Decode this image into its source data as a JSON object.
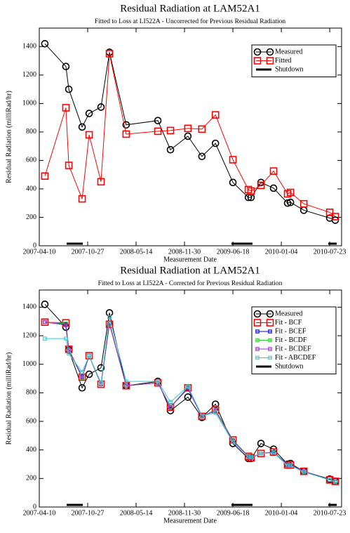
{
  "chart_data": [
    {
      "type": "line",
      "title": "Residual Radiation at LAM52A1",
      "subtitle": "Fitted to Loss at LI522A - Uncorrected for Previous Residual Radiation",
      "x_label": "Measurement Date",
      "y_label": "Residual Radiation (milliRad/hr)",
      "x": [
        "2007-05-03",
        "2007-07-29",
        "2007-08-10",
        "2007-10-04",
        "2007-11-02",
        "2007-12-21",
        "2008-01-25",
        "2008-04-03",
        "2008-08-12",
        "2008-10-03",
        "2008-12-14",
        "2009-02-10",
        "2009-04-07",
        "2009-06-18",
        "2009-08-21",
        "2009-09-01",
        "2009-10-12",
        "2009-12-03",
        "2010-01-30",
        "2010-02-11",
        "2010-04-07",
        "2010-07-23",
        "2010-08-15"
      ],
      "xlim": [
        "2007-04-10",
        "2010-09-10"
      ],
      "xticks": [
        "2007-04-10",
        "2007-10-27",
        "2008-05-14",
        "2008-11-30",
        "2009-06-18",
        "2010-01-04",
        "2010-07-23"
      ],
      "ylim": [
        0,
        1530
      ],
      "yticks": [
        0,
        200,
        400,
        600,
        800,
        1000,
        1200,
        1400
      ],
      "legend": "upper right",
      "series": [
        {
          "name": "Measured",
          "color": "#000000",
          "marker": "circle",
          "values": [
            1420,
            1260,
            1100,
            835,
            930,
            975,
            1360,
            850,
            880,
            675,
            770,
            628,
            720,
            445,
            340,
            340,
            445,
            405,
            300,
            305,
            250,
            195,
            180
          ]
        },
        {
          "name": "Fitted",
          "color": "#ff0000",
          "marker": "square",
          "values": [
            490,
            970,
            565,
            330,
            780,
            450,
            1350,
            785,
            805,
            810,
            825,
            820,
            920,
            605,
            395,
            385,
            425,
            525,
            365,
            375,
            295,
            235,
            205
          ]
        },
        {
          "name": "Shutdown",
          "color": "#000000",
          "periods": [
            [
              "2007-08-01",
              "2007-10-07"
            ],
            [
              "2009-06-12",
              "2009-09-07"
            ],
            [
              "2010-07-17",
              "2010-08-21"
            ]
          ]
        }
      ]
    },
    {
      "type": "line",
      "title": "Residual Radiation at LAM52A1",
      "subtitle": "Fitted to Loss at LI522A - Corrected for Previous Residual Radiation",
      "x_label": "Measurement Date",
      "y_label": "Residual Radiation (milliRad/hr)",
      "x": [
        "2007-05-03",
        "2007-07-29",
        "2007-08-10",
        "2007-10-04",
        "2007-11-02",
        "2007-12-21",
        "2008-01-25",
        "2008-04-03",
        "2008-08-12",
        "2008-10-03",
        "2008-12-14",
        "2009-02-10",
        "2009-04-07",
        "2009-06-18",
        "2009-08-21",
        "2009-09-01",
        "2009-10-12",
        "2009-12-03",
        "2010-01-30",
        "2010-02-11",
        "2010-04-07",
        "2010-07-23",
        "2010-08-15"
      ],
      "xlim": [
        "2007-04-10",
        "2010-09-10"
      ],
      "xticks": [
        "2007-04-10",
        "2007-10-27",
        "2008-05-14",
        "2008-11-30",
        "2009-06-18",
        "2010-01-04",
        "2010-07-23"
      ],
      "ylim": [
        0,
        1520
      ],
      "yticks": [
        0,
        200,
        400,
        600,
        800,
        1000,
        1200,
        1400
      ],
      "legend": "upper right",
      "series": [
        {
          "name": "Measured",
          "color": "#000000",
          "marker": "circle",
          "values": [
            1420,
            1260,
            1100,
            835,
            930,
            975,
            1360,
            850,
            880,
            675,
            770,
            628,
            720,
            445,
            340,
            340,
            445,
            405,
            300,
            305,
            250,
            195,
            180
          ]
        },
        {
          "name": "Fit - BCF",
          "color": "#ff0000",
          "marker": "square",
          "values": [
            1295,
            1290,
            1105,
            910,
            1060,
            860,
            1280,
            850,
            870,
            700,
            835,
            635,
            680,
            470,
            355,
            345,
            375,
            385,
            295,
            295,
            250,
            190,
            180
          ]
        },
        {
          "name": "Fit - BCEF",
          "color": "#0000ff",
          "marker": "small-square",
          "values": [
            1295,
            1280,
            1100,
            915,
            1060,
            860,
            1290,
            850,
            870,
            700,
            830,
            635,
            675,
            465,
            355,
            345,
            375,
            385,
            295,
            295,
            250,
            190,
            180
          ]
        },
        {
          "name": "Fit - BCDF",
          "color": "#33cc33",
          "marker": "small-square",
          "values": [
            1295,
            1285,
            1100,
            905,
            1060,
            860,
            1285,
            850,
            870,
            700,
            840,
            635,
            680,
            470,
            355,
            345,
            375,
            385,
            295,
            295,
            250,
            190,
            180
          ]
        },
        {
          "name": "Fit - BCDEF",
          "color": "#9933cc",
          "marker": "small-square",
          "values": [
            1295,
            1275,
            1100,
            910,
            1060,
            860,
            1290,
            850,
            870,
            700,
            835,
            635,
            675,
            465,
            355,
            345,
            375,
            385,
            295,
            295,
            250,
            190,
            180
          ]
        },
        {
          "name": "Fit - ABCDEF",
          "color": "#33cccc",
          "marker": "small-square",
          "values": [
            1180,
            1180,
            1075,
            945,
            1060,
            870,
            1330,
            880,
            880,
            735,
            845,
            640,
            660,
            455,
            350,
            350,
            375,
            380,
            290,
            290,
            245,
            190,
            175
          ]
        },
        {
          "name": "Shutdown",
          "color": "#000000",
          "periods": [
            [
              "2007-08-01",
              "2007-10-07"
            ],
            [
              "2009-06-12",
              "2009-09-07"
            ],
            [
              "2010-07-17",
              "2010-08-21"
            ]
          ]
        }
      ]
    }
  ]
}
